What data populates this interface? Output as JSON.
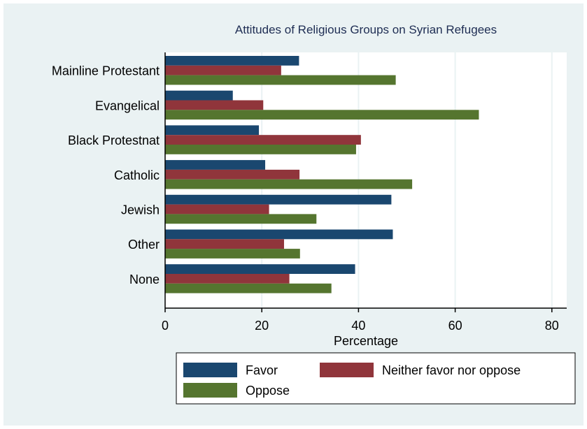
{
  "chart_data": {
    "type": "bar",
    "orientation": "horizontal",
    "title": "Attitudes of Religious Groups on Syrian Refugees",
    "xlabel": "Percentage",
    "ylabel": "",
    "xlim": [
      0,
      83
    ],
    "xticks": [
      0,
      20,
      40,
      60,
      80
    ],
    "grid": true,
    "categories": [
      "Mainline Protestant",
      "Evangelical",
      "Black Protestnat",
      "Catholic",
      "Jewish",
      "Other",
      "None"
    ],
    "series": [
      {
        "name": "Favor",
        "color": "#1a476f",
        "values": [
          27.7,
          14.0,
          19.4,
          20.7,
          46.8,
          47.1,
          39.3
        ]
      },
      {
        "name": "Neither favor nor oppose",
        "color": "#90353b",
        "values": [
          24.0,
          20.3,
          40.5,
          27.8,
          21.5,
          24.6,
          25.7
        ]
      },
      {
        "name": "Oppose",
        "color": "#55752f",
        "values": [
          47.7,
          64.9,
          39.5,
          51.1,
          31.3,
          27.9,
          34.4
        ]
      }
    ],
    "legend_position": "bottom"
  }
}
